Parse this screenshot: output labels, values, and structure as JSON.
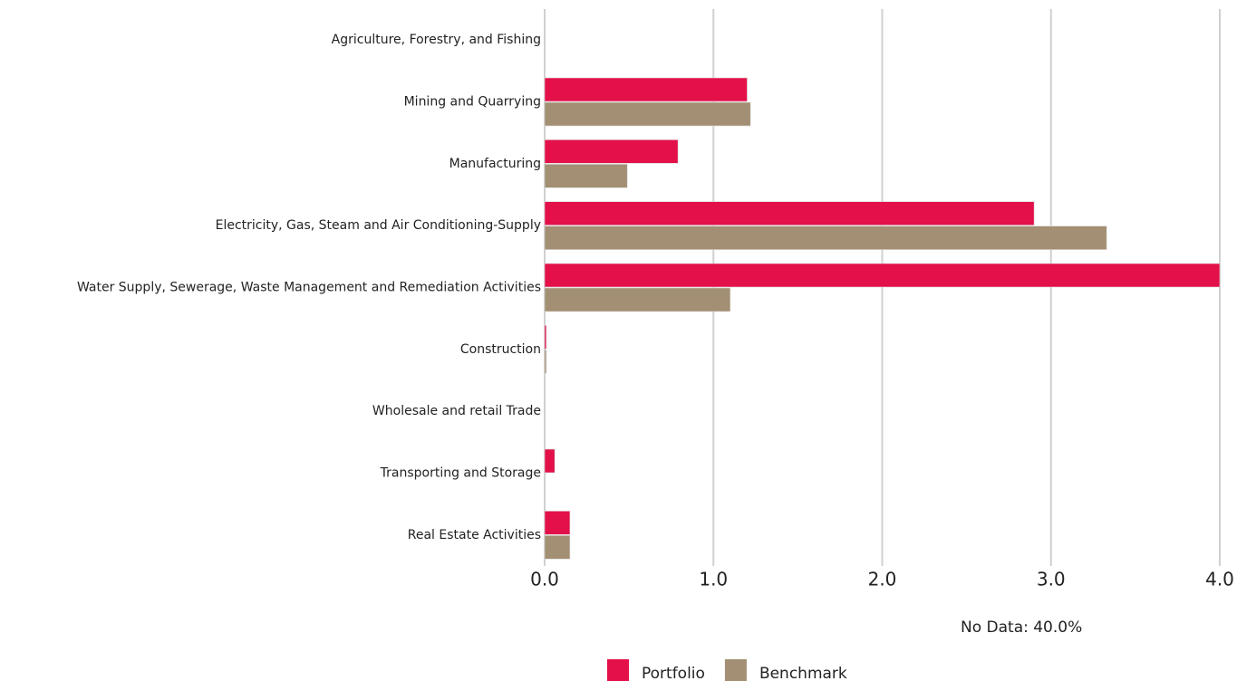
{
  "chart_data": {
    "type": "bar",
    "orientation": "horizontal",
    "categories": [
      "Agriculture, Forestry, and Fishing",
      "Mining and Quarrying",
      "Manufacturing",
      "Electricity, Gas, Steam and Air Conditioning-Supply",
      "Water Supply, Sewerage, Waste Management and Remediation Activities",
      "Construction",
      "Wholesale and retail Trade",
      "Transporting and Storage",
      "Real Estate Activities"
    ],
    "series": [
      {
        "name": "Portfolio",
        "color": "#e31049",
        "values": [
          0,
          1.2,
          0.79,
          2.9,
          4.0,
          0.01,
          0,
          0.06,
          0.15
        ]
      },
      {
        "name": "Benchmark",
        "color": "#a38f73",
        "values": [
          0,
          1.22,
          0.49,
          3.33,
          1.1,
          0.01,
          0,
          0,
          0.15
        ]
      }
    ],
    "xlim": [
      0,
      4
    ],
    "xticks": [
      {
        "value": 0,
        "label": "0.0"
      },
      {
        "value": 1,
        "label": "1.0"
      },
      {
        "value": 2,
        "label": "2.0"
      },
      {
        "value": 3,
        "label": "3.0"
      },
      {
        "value": 4,
        "label": "4.0"
      }
    ],
    "grid": true,
    "legend": "bottom",
    "annotation": "No Data: 40.0%"
  }
}
